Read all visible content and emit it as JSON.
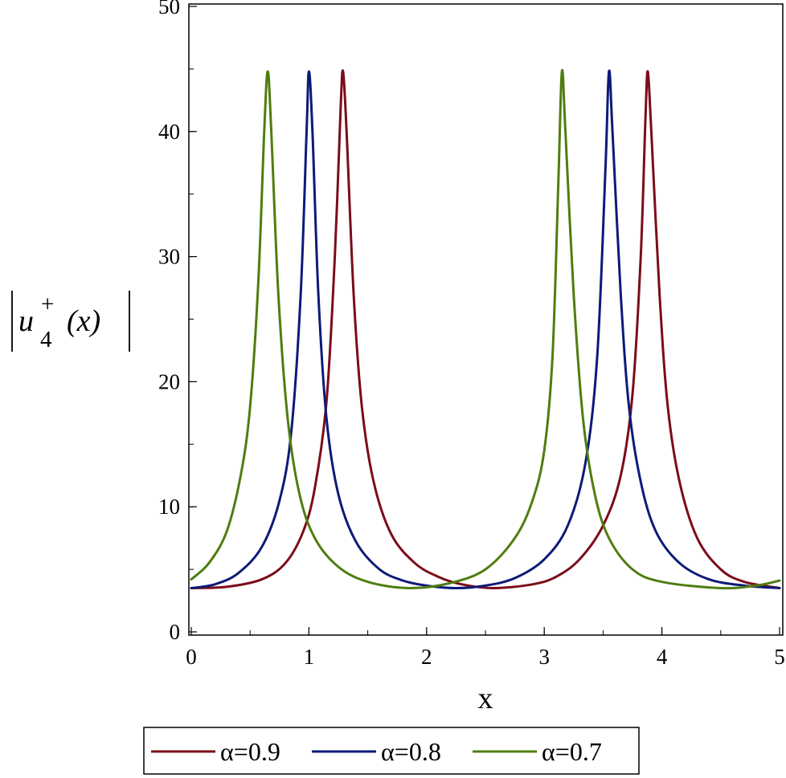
{
  "chart_data": {
    "type": "line",
    "title": "",
    "xlabel": "x",
    "ylabel": {
      "base": "u",
      "subscript": "4",
      "superscript": "+",
      "argument": "(x)"
    },
    "xlim": [
      0,
      5
    ],
    "ylim": [
      0,
      50
    ],
    "x_ticks": [
      "0",
      "1",
      "2",
      "3",
      "4",
      "5"
    ],
    "y_ticks": [
      "0",
      "10",
      "20",
      "30",
      "40",
      "50"
    ],
    "grid": false,
    "legend_position": "bottom",
    "series": [
      {
        "name": "α=0.9",
        "color": "#7b0c1a",
        "x": [
          0,
          0.3,
          0.6,
          0.8,
          0.95,
          1.05,
          1.15,
          1.22,
          1.27,
          1.29,
          1.32,
          1.38,
          1.45,
          1.55,
          1.7,
          1.9,
          2.1,
          2.3,
          2.57,
          2.9,
          3.1,
          3.3,
          3.5,
          3.65,
          3.75,
          3.82,
          3.86,
          3.88,
          3.91,
          3.98,
          4.05,
          4.15,
          4.3,
          4.5,
          4.7,
          5
        ],
        "y": [
          3.5,
          3.6,
          4.2,
          5.5,
          8.0,
          11.5,
          18.5,
          30.0,
          42.0,
          44.8,
          40.0,
          27.0,
          18.0,
          12.0,
          7.8,
          5.5,
          4.4,
          3.8,
          3.5,
          3.8,
          4.4,
          5.8,
          8.5,
          12.5,
          19.0,
          30.0,
          41.0,
          44.8,
          40.0,
          27.0,
          18.0,
          12.0,
          7.5,
          5.0,
          4.0,
          3.5
        ]
      },
      {
        "name": "α=0.8",
        "color": "#0d1a78",
        "x": [
          0,
          0.2,
          0.4,
          0.6,
          0.75,
          0.85,
          0.93,
          0.98,
          1.0,
          1.03,
          1.08,
          1.15,
          1.25,
          1.4,
          1.6,
          1.8,
          2.0,
          2.25,
          2.5,
          2.75,
          3.0,
          3.2,
          3.35,
          3.45,
          3.52,
          3.55,
          3.58,
          3.65,
          3.72,
          3.82,
          3.95,
          4.15,
          4.4,
          4.7,
          5
        ],
        "y": [
          3.5,
          3.8,
          4.7,
          6.8,
          10.5,
          16.0,
          27.0,
          40.0,
          44.8,
          40.0,
          27.0,
          17.0,
          11.0,
          7.2,
          5.0,
          4.1,
          3.7,
          3.5,
          3.7,
          4.3,
          5.8,
          8.5,
          13.5,
          22.0,
          37.0,
          44.8,
          40.0,
          27.0,
          18.0,
          12.0,
          8.0,
          5.5,
          4.2,
          3.7,
          3.5
        ]
      },
      {
        "name": "α=0.7",
        "color": "#4f7d10",
        "x": [
          0,
          0.15,
          0.3,
          0.42,
          0.5,
          0.57,
          0.62,
          0.65,
          0.68,
          0.74,
          0.82,
          0.92,
          1.05,
          1.25,
          1.5,
          1.85,
          2.2,
          2.5,
          2.75,
          2.9,
          3.0,
          3.07,
          3.12,
          3.15,
          3.18,
          3.25,
          3.33,
          3.43,
          3.55,
          3.75,
          4.0,
          4.5,
          4.8,
          5
        ],
        "y": [
          4.2,
          5.5,
          8.0,
          12.5,
          18.0,
          28.0,
          40.0,
          44.8,
          40.0,
          27.0,
          17.0,
          11.0,
          7.5,
          5.2,
          4.0,
          3.5,
          3.9,
          5.0,
          7.5,
          10.5,
          14.5,
          22.0,
          36.0,
          44.8,
          40.0,
          27.0,
          17.0,
          11.0,
          7.5,
          5.0,
          4.0,
          3.5,
          3.7,
          4.1
        ]
      }
    ]
  }
}
